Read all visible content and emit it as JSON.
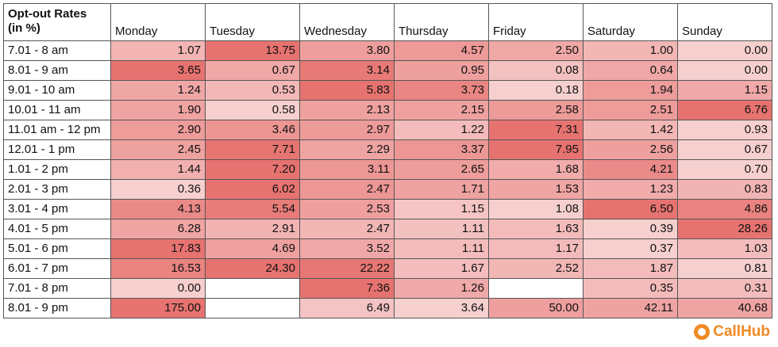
{
  "chart_data": {
    "type": "heatmap",
    "title": "Opt-out Rates (in %)",
    "title_lines": [
      "Opt-out Rates",
      "(in %)"
    ],
    "columns": [
      "Monday",
      "Tuesday",
      "Wednesday",
      "Thursday",
      "Friday",
      "Saturday",
      "Sunday"
    ],
    "rows": [
      "7.01 - 8 am",
      "8.01 - 9 am",
      "9.01 - 10 am",
      "10.01 - 11 am",
      "11.01 am - 12 pm",
      "12.01 - 1 pm",
      "1.01 - 2 pm",
      "2.01 - 3 pm",
      "3.01 - 4 pm",
      "4.01 - 5 pm",
      "5.01 - 6 pm",
      "6.01 - 7 pm",
      "7.01 - 8 pm",
      "8.01 - 9 pm"
    ],
    "values": [
      [
        "1.07",
        "13.75",
        "3.80",
        "4.57",
        "2.50",
        "1.00",
        "0.00"
      ],
      [
        "3.65",
        "0.67",
        "3.14",
        "0.95",
        "0.08",
        "0.64",
        "0.00"
      ],
      [
        "1.24",
        "0.53",
        "5.83",
        "3.73",
        "0.18",
        "1.94",
        "1.15"
      ],
      [
        "1.90",
        "0.58",
        "2.13",
        "2.15",
        "2.58",
        "2.51",
        "6.76"
      ],
      [
        "2.90",
        "3.46",
        "2.97",
        "1.22",
        "7.31",
        "1.42",
        "0.93"
      ],
      [
        "2.45",
        "7.71",
        "2.29",
        "3.37",
        "7.95",
        "2.56",
        "0.67"
      ],
      [
        "1.44",
        "7.20",
        "3.11",
        "2.65",
        "1.68",
        "4.21",
        "0.70"
      ],
      [
        "0.36",
        "6.02",
        "2.47",
        "1.71",
        "1.53",
        "1.23",
        "0.83"
      ],
      [
        "4.13",
        "5.54",
        "2.53",
        "1.15",
        "1.08",
        "6.50",
        "4.86"
      ],
      [
        "6.28",
        "2.91",
        "2.47",
        "1.11",
        "1.63",
        "0.39",
        "28.26"
      ],
      [
        "17.83",
        "4.69",
        "3.52",
        "1.11",
        "1.17",
        "0.37",
        "1.03"
      ],
      [
        "16.53",
        "24.30",
        "22.22",
        "1.67",
        "2.52",
        "1.87",
        "0.81"
      ],
      [
        "0.00",
        null,
        "7.36",
        "1.26",
        null,
        "0.35",
        "0.31"
      ],
      [
        "175.00",
        null,
        "6.49",
        "3.64",
        "50.00",
        "42.11",
        "40.68"
      ]
    ],
    "color_scale": {
      "low": "#f6cfcf",
      "high": "#e67370"
    }
  },
  "brand": {
    "name": "CallHub",
    "color": "#f08a24"
  }
}
